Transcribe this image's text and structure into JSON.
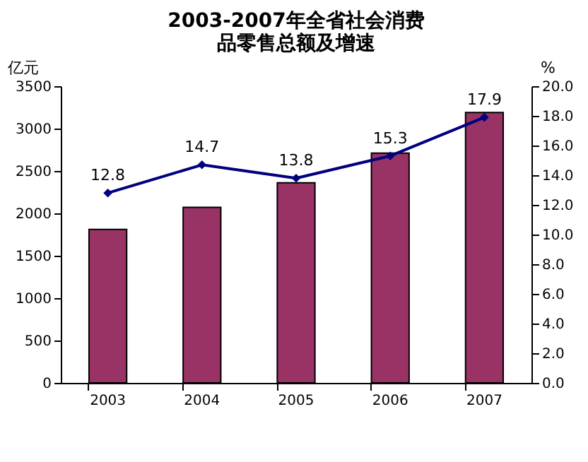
{
  "chart_data": {
    "type": "bar",
    "title": "2003-2007年全省社会消费品零售总额及增速",
    "categories": [
      "2003",
      "2004",
      "2005",
      "2006",
      "2007"
    ],
    "series": [
      {
        "color": "#993366",
        "values": [
          1810,
          2070,
          2360,
          2710,
          3190
        ]
      },
      {
        "type": "line",
        "axis": "y2",
        "color": "#000080",
        "marker": "diamond",
        "values": [
          12.8,
          14.7,
          13.8,
          15.3,
          17.9
        ],
        "value_labels": [
          "12.8",
          "14.7",
          "13.8",
          "15.3",
          "17.9"
        ]
      }
    ],
    "ylabel": "亿元",
    "y2label": "%",
    "ylim": [
      0,
      3500
    ],
    "yticks": [
      0,
      500,
      1000,
      1500,
      2000,
      2500,
      3000,
      3500
    ],
    "y2lim": [
      0,
      20
    ],
    "y2ticks": [
      {
        "value": 0,
        "label": "0.0"
      },
      {
        "value": 2,
        "label": "2.0"
      },
      {
        "value": 4,
        "label": "4.0"
      },
      {
        "value": 6,
        "label": "6.0"
      },
      {
        "value": 8,
        "label": "8.0"
      },
      {
        "value": 10,
        "label": "10.0"
      },
      {
        "value": 12,
        "label": "12.0"
      },
      {
        "value": 14,
        "label": "14.0"
      },
      {
        "value": 16,
        "label": "16.0"
      },
      {
        "value": 18,
        "label": "18.0"
      },
      {
        "value": 20,
        "label": "20.0"
      }
    ],
    "grid": false
  }
}
